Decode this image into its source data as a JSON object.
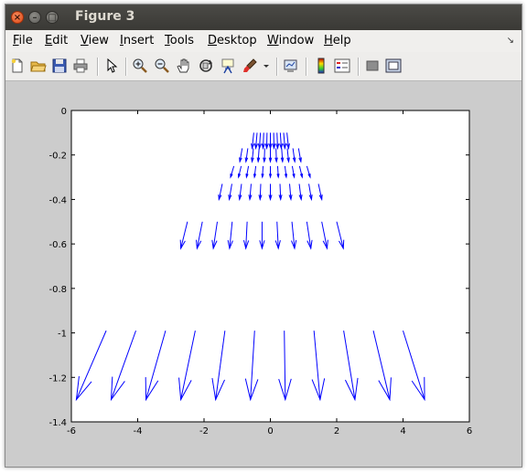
{
  "window": {
    "title": "Figure 3"
  },
  "menu": [
    {
      "label": "File",
      "underline": "F",
      "rest": "ile"
    },
    {
      "label": "Edit",
      "underline": "E",
      "rest": "dit"
    },
    {
      "label": "View",
      "underline": "V",
      "rest": "iew"
    },
    {
      "label": "Insert",
      "underline": "I",
      "rest": "nsert"
    },
    {
      "label": "Tools",
      "underline": "T",
      "rest": "ools"
    },
    {
      "label": "Desktop",
      "underline": "D",
      "rest": "esktop"
    },
    {
      "label": "Window",
      "underline": "W",
      "rest": "indow"
    },
    {
      "label": "Help",
      "underline": "H",
      "rest": "elp"
    }
  ],
  "toolbar": [
    "new-figure",
    "open-file",
    "save-figure",
    "print-figure",
    "edit-plot",
    "zoom-in",
    "zoom-out",
    "pan",
    "rotate-3d",
    "data-cursor",
    "brush",
    "brush-dropdown",
    "link-plot",
    "insert-colorbar",
    "insert-legend",
    "hide-plot-tools",
    "show-plot-tools"
  ],
  "chart_data": {
    "type": "quiver",
    "xlim": [
      -6,
      6
    ],
    "ylim": [
      -1.4,
      0
    ],
    "xticks": [
      "-6",
      "-4",
      "-2",
      "0",
      "2",
      "4",
      "6"
    ],
    "yticks": [
      "0",
      "-0.2",
      "-0.4",
      "-0.6",
      "-0.8",
      "-1",
      "-1.2",
      "-1.4"
    ],
    "grid": false,
    "color": "#0000ff",
    "rows": [
      {
        "y": -0.1,
        "n": 11,
        "x_start": -0.5,
        "x_end": 0.5,
        "tip_x_start": -0.55,
        "tip_x_end": 0.55,
        "tip_y": -0.17
      },
      {
        "y": -0.17,
        "n": 11,
        "x_start": -0.85,
        "x_end": 0.85,
        "tip_x_start": -0.92,
        "tip_x_end": 0.92,
        "tip_y": -0.23
      },
      {
        "y": -0.25,
        "n": 11,
        "x_start": -1.1,
        "x_end": 1.1,
        "tip_x_start": -1.2,
        "tip_x_end": 1.2,
        "tip_y": -0.3
      },
      {
        "y": -0.33,
        "n": 11,
        "x_start": -1.45,
        "x_end": 1.45,
        "tip_x_start": -1.55,
        "tip_x_end": 1.55,
        "tip_y": -0.4
      },
      {
        "y": -0.5,
        "n": 11,
        "x_start": -2.5,
        "x_end": 2.0,
        "tip_x_start": -2.7,
        "tip_x_end": 2.2,
        "tip_y": -0.62
      },
      {
        "y": -0.99,
        "n": 11,
        "x_start": -4.95,
        "x_end": 4.0,
        "tip_x_start": -5.85,
        "tip_x_end": 4.65,
        "tip_y": -1.3
      }
    ]
  }
}
